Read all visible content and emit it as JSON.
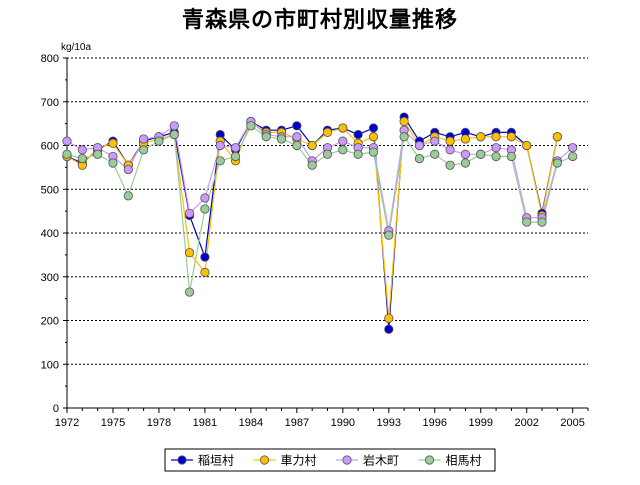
{
  "chart_data": {
    "type": "line",
    "title": "青森県の市町村別収量推移",
    "ylabel": "kg/10a",
    "xlabel": "",
    "ylim": [
      0,
      800
    ],
    "yticks": [
      0,
      100,
      200,
      300,
      400,
      500,
      600,
      700,
      800
    ],
    "xlim": [
      1972,
      2006
    ],
    "xticks": [
      1972,
      1975,
      1978,
      1981,
      1984,
      1987,
      1990,
      1993,
      1996,
      1999,
      2002,
      2005
    ],
    "grid": "horizontal-dashed",
    "legend": "bottom",
    "x": [
      1972,
      1973,
      1974,
      1975,
      1976,
      1977,
      1978,
      1979,
      1980,
      1981,
      1982,
      1983,
      1984,
      1985,
      1986,
      1987,
      1988,
      1989,
      1990,
      1991,
      1992,
      1993,
      1994,
      1995,
      1996,
      1997,
      1998,
      1999,
      2000,
      2001,
      2002,
      2003,
      2004,
      2005
    ],
    "series": [
      {
        "name": "稲垣村",
        "color": "#0000cc",
        "values": [
          575,
          560,
          590,
          610,
          555,
          610,
          620,
          630,
          440,
          345,
          625,
          590,
          655,
          635,
          635,
          645,
          600,
          635,
          640,
          625,
          640,
          180,
          665,
          610,
          630,
          620,
          630,
          620,
          630,
          630,
          600,
          445,
          620,
          null
        ]
      },
      {
        "name": "車力村",
        "color": "#ffc000",
        "values": [
          575,
          555,
          595,
          605,
          555,
          605,
          615,
          625,
          355,
          310,
          610,
          565,
          655,
          630,
          630,
          615,
          600,
          630,
          640,
          605,
          620,
          205,
          655,
          600,
          620,
          610,
          615,
          620,
          620,
          620,
          600,
          440,
          620,
          null
        ]
      },
      {
        "name": "岩木町",
        "color": "#cc99ff",
        "values": [
          610,
          590,
          595,
          575,
          545,
          615,
          620,
          645,
          445,
          480,
          600,
          595,
          655,
          625,
          620,
          620,
          565,
          595,
          610,
          595,
          595,
          405,
          635,
          600,
          610,
          590,
          580,
          580,
          595,
          590,
          435,
          435,
          565,
          595
        ]
      },
      {
        "name": "相馬村",
        "color": "#99cc99",
        "values": [
          580,
          570,
          580,
          560,
          485,
          590,
          610,
          625,
          265,
          455,
          565,
          575,
          645,
          620,
          615,
          600,
          555,
          580,
          590,
          580,
          585,
          395,
          620,
          570,
          580,
          555,
          560,
          580,
          575,
          575,
          425,
          425,
          560,
          575
        ]
      }
    ]
  }
}
